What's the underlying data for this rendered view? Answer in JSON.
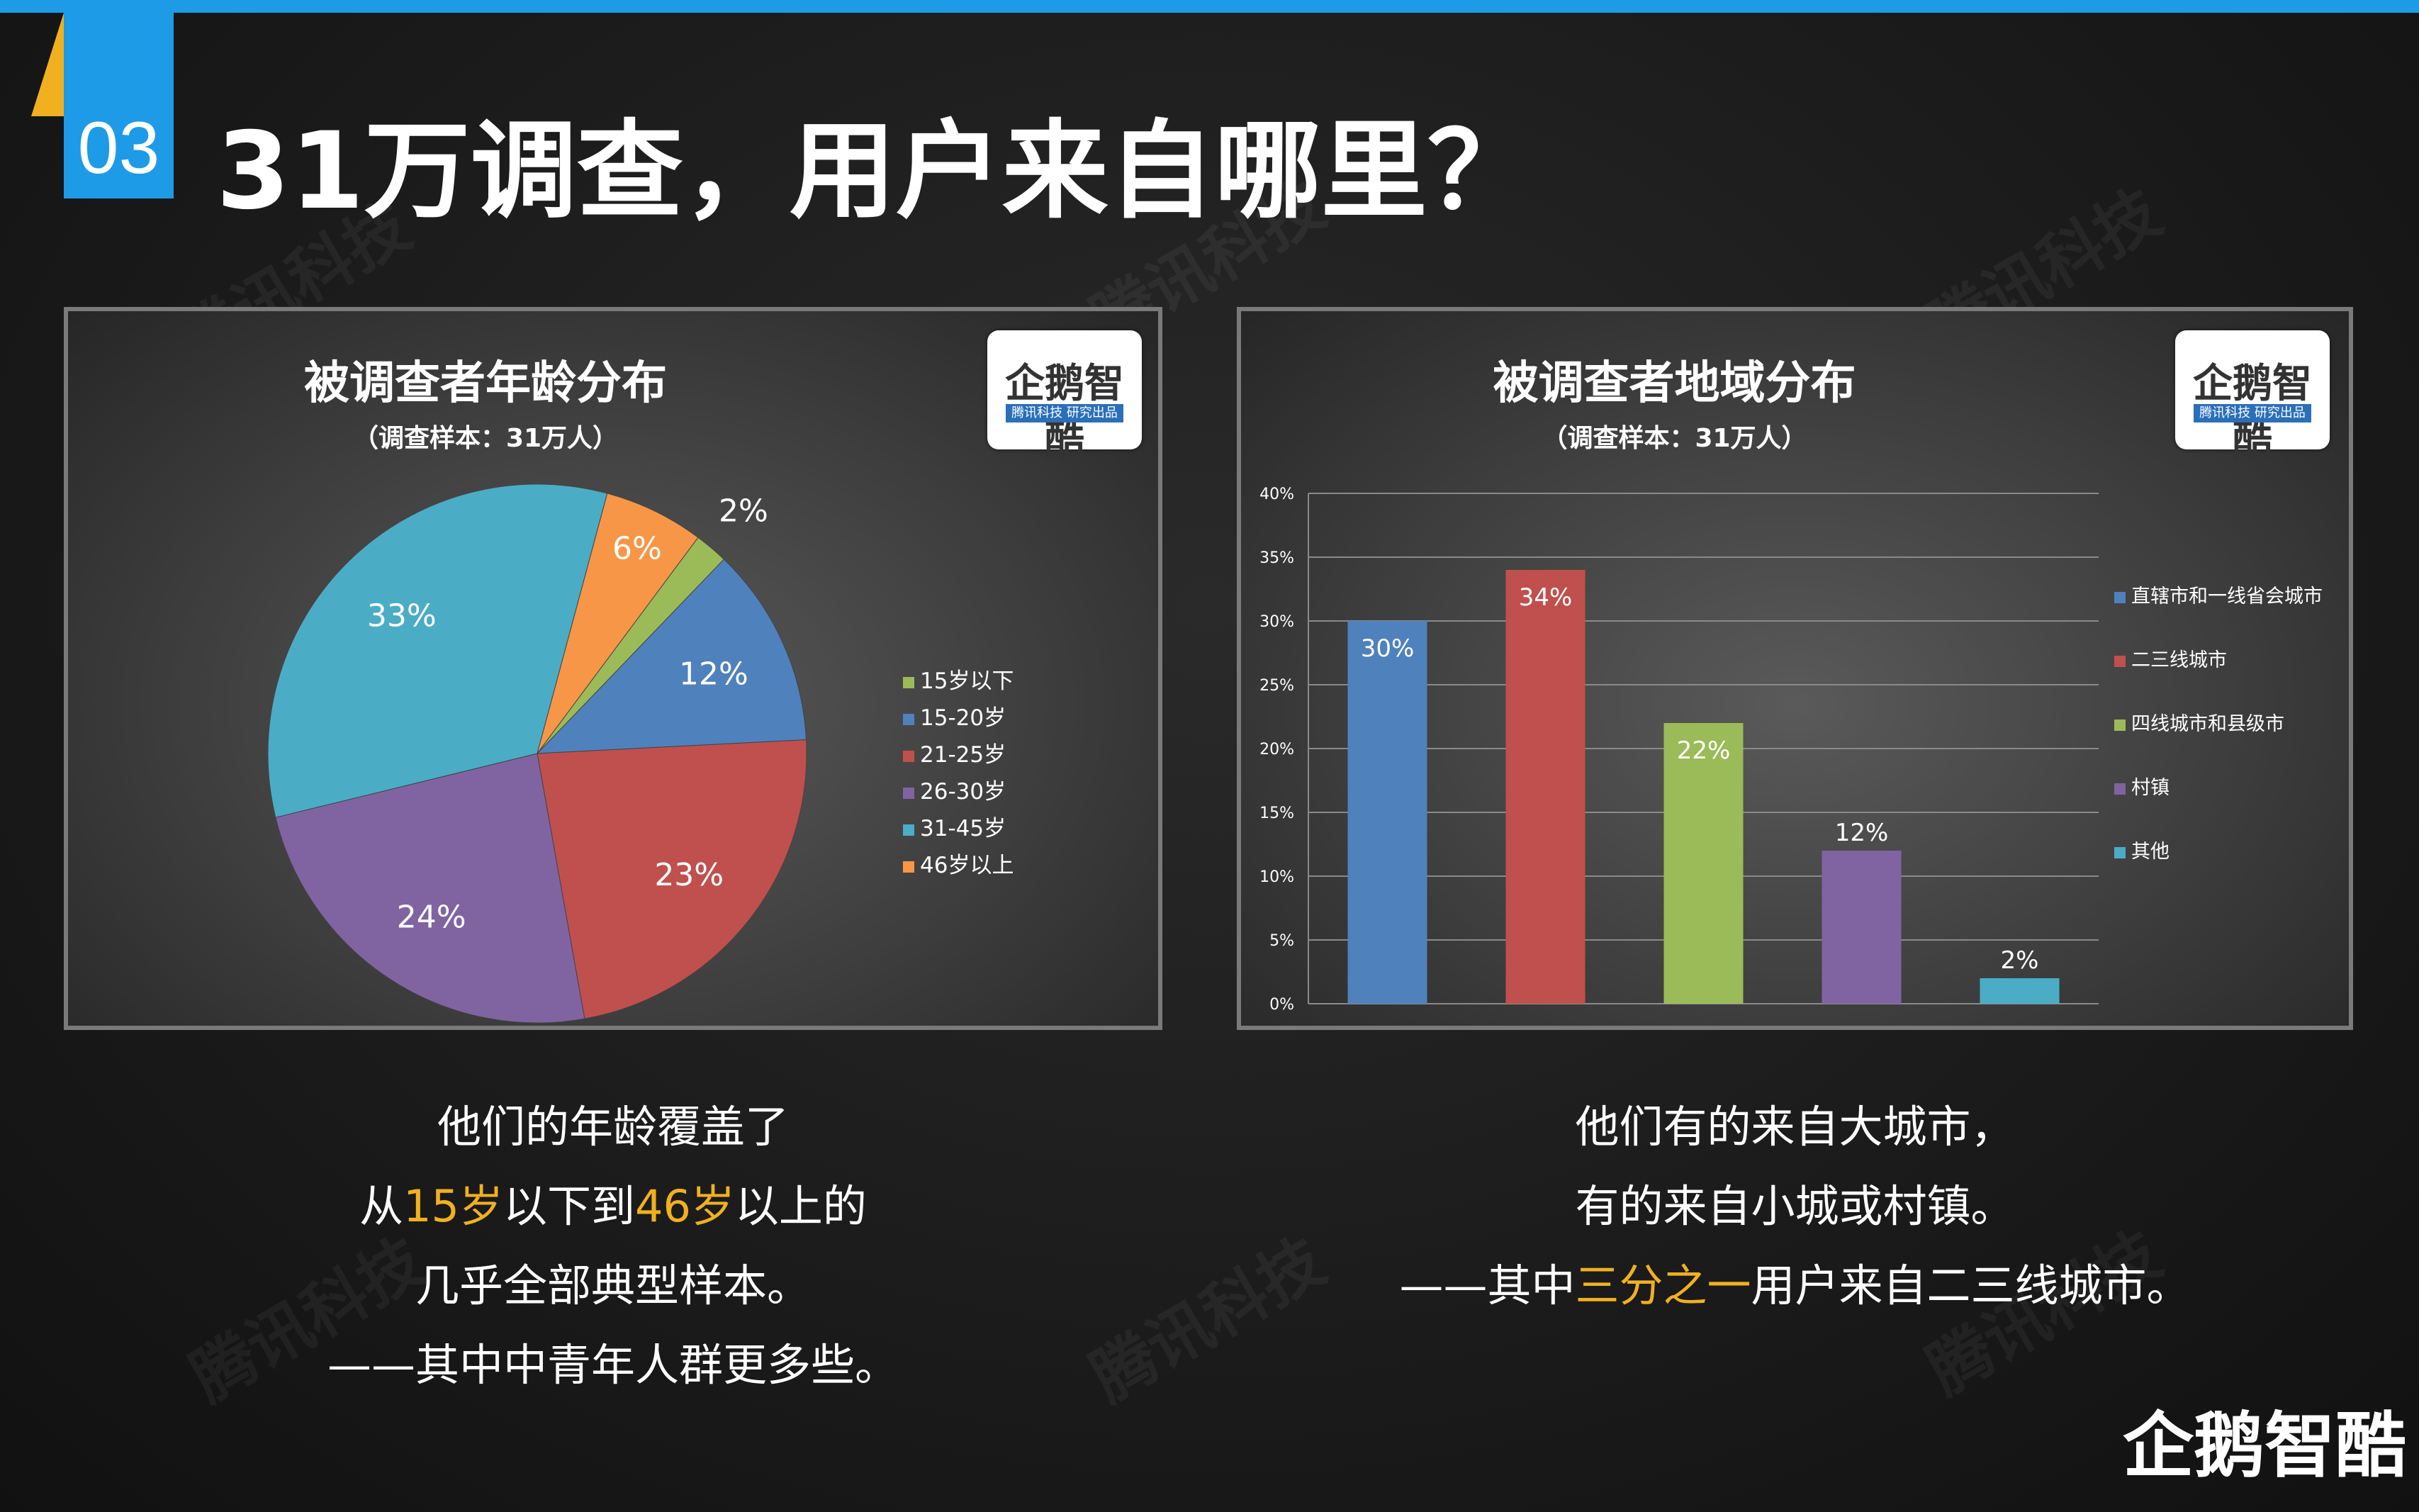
{
  "header": {
    "number": "03",
    "title": "31万调查，用户来自哪里？"
  },
  "brand": {
    "logo_text": "企鹅智酷",
    "logo_sub": "腾讯科技 研究出品",
    "watermark": "腾讯科技"
  },
  "captions": {
    "left": {
      "line1": "他们的年龄覆盖了",
      "line2_a": "从",
      "line2_hl1": "15岁",
      "line2_b": "以下到",
      "line2_hl2": "46岁",
      "line2_c": "以上的",
      "line3": "几乎全部典型样本。",
      "line4": "——其中中青年人群更多些。"
    },
    "right": {
      "line1": "他们有的来自大城市，",
      "line2": "有的来自小城或村镇。",
      "line3_a": "——其中",
      "line3_hl": "三分之一",
      "line3_b": "用户来自二三线城市。"
    }
  },
  "chart_data": [
    {
      "type": "pie",
      "title": "被调查者年龄分布",
      "subtitle": "（调查样本：31万人）",
      "legend_position": "right",
      "slices": [
        {
          "label": "15岁以下",
          "value": 2,
          "display": "2%",
          "color": "#9bbb59"
        },
        {
          "label": "15-20岁",
          "value": 12,
          "display": "12%",
          "color": "#4f81bd"
        },
        {
          "label": "21-25岁",
          "value": 23,
          "display": "23%",
          "color": "#c0504d"
        },
        {
          "label": "26-30岁",
          "value": 24,
          "display": "24%",
          "color": "#8064a2"
        },
        {
          "label": "31-45岁",
          "value": 33,
          "display": "33%",
          "color": "#4bacc6"
        },
        {
          "label": "46岁以上",
          "value": 6,
          "display": "6%",
          "color": "#f79646"
        }
      ]
    },
    {
      "type": "bar",
      "title": "被调查者地域分布",
      "subtitle": "（调查样本：31万人）",
      "legend_position": "right",
      "ylim": [
        0,
        40
      ],
      "yticks": [
        "0%",
        "5%",
        "10%",
        "15%",
        "20%",
        "25%",
        "30%",
        "35%",
        "40%"
      ],
      "grid": true,
      "categories": [
        "直辖市和一线省会城市",
        "二三线城市",
        "四线城市和县级市",
        "村镇",
        "其他"
      ],
      "values": [
        30,
        34,
        22,
        12,
        2
      ],
      "value_labels": [
        "30%",
        "34%",
        "22%",
        "12%",
        "2%"
      ],
      "colors": [
        "#4f81bd",
        "#c0504d",
        "#9bbb59",
        "#8064a2",
        "#4bacc6"
      ]
    }
  ]
}
